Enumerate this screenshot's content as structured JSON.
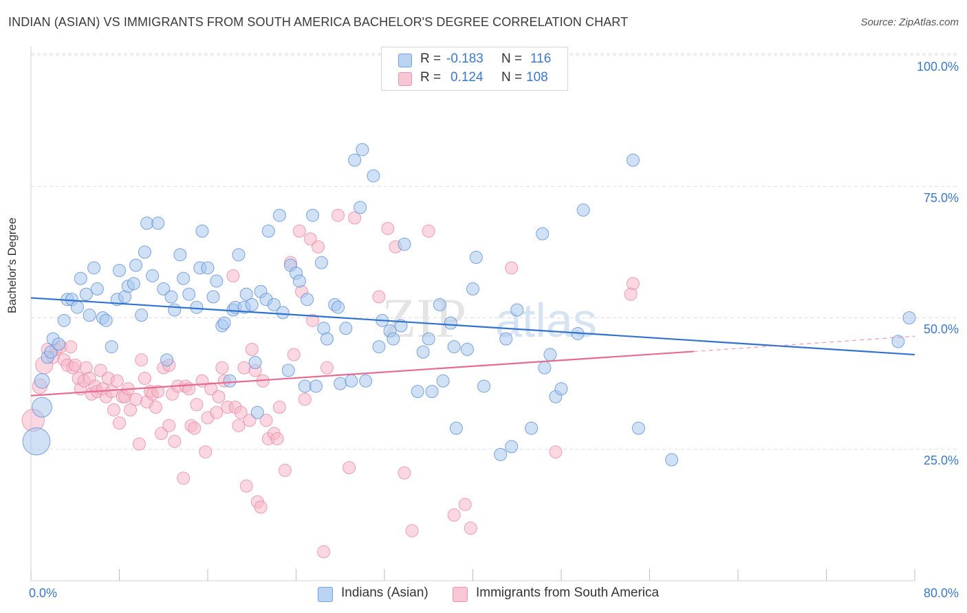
{
  "header": {
    "title": "INDIAN (ASIAN) VS IMMIGRANTS FROM SOUTH AMERICA BACHELOR'S DEGREE CORRELATION CHART",
    "source": "Source: ZipAtlas.com"
  },
  "watermark": "ZIPatlas",
  "legend_top": {
    "rows": [
      {
        "r_label": "R =",
        "r_value": "-0.183",
        "n_label": "N =",
        "n_value": "116"
      },
      {
        "r_label": "R =",
        "r_value": "0.124",
        "n_label": "N =",
        "n_value": "108"
      }
    ]
  },
  "colors": {
    "blue_fill": "#a9c8ef",
    "blue_stroke": "#5b8fd6",
    "blue_line": "#2f72cf",
    "pink_fill": "#f6b6c9",
    "pink_stroke": "#e98aa6",
    "pink_line": "#e56b93",
    "axis_text": "#3a78c9",
    "grid": "#dddddd"
  },
  "chart_data": {
    "type": "scatter",
    "title": "INDIAN (ASIAN) VS IMMIGRANTS FROM SOUTH AMERICA BACHELOR'S DEGREE CORRELATION CHART",
    "xlabel": "",
    "ylabel": "Bachelor's Degree",
    "xlim": [
      0,
      80
    ],
    "ylim": [
      0,
      102
    ],
    "x_tick_labels": [
      "0.0%",
      "80.0%"
    ],
    "y_tick_labels": [
      "25.0%",
      "50.0%",
      "75.0%",
      "100.0%"
    ],
    "y_ticks": [
      25,
      50,
      75,
      100
    ],
    "grid": true,
    "series": [
      {
        "name": "Indians (Asian)",
        "r": -0.183,
        "n": 116,
        "trend": {
          "x0": 0,
          "y0": 53.8,
          "x1": 80,
          "y1": 43.0
        },
        "points": [
          [
            0.5,
            26.5,
            2.2
          ],
          [
            1.0,
            33,
            1.6
          ],
          [
            1.0,
            38,
            1.2
          ],
          [
            1.5,
            42.5,
            1.0
          ],
          [
            1.8,
            43.5,
            1.0
          ],
          [
            2.0,
            46,
            1.0
          ],
          [
            2.5,
            45,
            1.0
          ],
          [
            3.0,
            49.5,
            1.0
          ],
          [
            3.3,
            53.5,
            1.0
          ],
          [
            3.7,
            53.5,
            1.0
          ],
          [
            4.2,
            52,
            1.0
          ],
          [
            4.5,
            57.5,
            1.0
          ],
          [
            5.0,
            54.5,
            1.0
          ],
          [
            5.3,
            50.5,
            1.0
          ],
          [
            5.7,
            59.5,
            1.0
          ],
          [
            6.0,
            55.5,
            1.0
          ],
          [
            6.5,
            50,
            1.0
          ],
          [
            6.8,
            49.5,
            1.0
          ],
          [
            7.3,
            44.5,
            1.0
          ],
          [
            7.8,
            53.5,
            1.0
          ],
          [
            8.0,
            59,
            1.0
          ],
          [
            8.5,
            54,
            1.0
          ],
          [
            8.8,
            56,
            1.0
          ],
          [
            9.3,
            56.5,
            1.0
          ],
          [
            9.5,
            60,
            1.0
          ],
          [
            10.0,
            50.5,
            1.0
          ],
          [
            10.3,
            62.5,
            1.0
          ],
          [
            10.5,
            68,
            1.0
          ],
          [
            11.0,
            58,
            1.0
          ],
          [
            11.5,
            68,
            1.0
          ],
          [
            12.0,
            55.5,
            1.0
          ],
          [
            12.3,
            42,
            1.0
          ],
          [
            12.7,
            54,
            1.0
          ],
          [
            13.0,
            51.5,
            1.0
          ],
          [
            13.5,
            62,
            1.0
          ],
          [
            13.8,
            57.5,
            1.0
          ],
          [
            14.3,
            54.5,
            1.0
          ],
          [
            15.0,
            52,
            1.0
          ],
          [
            15.3,
            59.5,
            1.0
          ],
          [
            15.5,
            66.5,
            1.0
          ],
          [
            16.0,
            59.5,
            1.0
          ],
          [
            16.5,
            54,
            1.0
          ],
          [
            16.8,
            57,
            1.0
          ],
          [
            17.3,
            48.5,
            1.0
          ],
          [
            17.5,
            49,
            1.0
          ],
          [
            18.0,
            38,
            1.0
          ],
          [
            18.3,
            51.5,
            1.0
          ],
          [
            18.5,
            52,
            1.0
          ],
          [
            18.8,
            62,
            1.0
          ],
          [
            19.3,
            52,
            1.0
          ],
          [
            19.5,
            54.5,
            1.0
          ],
          [
            20.0,
            52.5,
            1.0
          ],
          [
            20.3,
            41.5,
            1.0
          ],
          [
            20.5,
            32,
            1.0
          ],
          [
            20.8,
            55,
            1.0
          ],
          [
            21.3,
            53.5,
            1.0
          ],
          [
            21.5,
            66.5,
            1.0
          ],
          [
            22.0,
            52.5,
            1.0
          ],
          [
            22.5,
            69.5,
            1.0
          ],
          [
            22.8,
            51,
            1.0
          ],
          [
            23.3,
            40,
            1.0
          ],
          [
            23.5,
            60,
            1.0
          ],
          [
            24.0,
            58.5,
            1.0
          ],
          [
            24.3,
            57,
            1.0
          ],
          [
            24.8,
            37,
            1.0
          ],
          [
            25.0,
            53.5,
            1.0
          ],
          [
            25.5,
            69.5,
            1.0
          ],
          [
            25.8,
            37,
            1.0
          ],
          [
            26.3,
            60.5,
            1.0
          ],
          [
            26.5,
            48,
            1.0
          ],
          [
            26.8,
            46,
            1.0
          ],
          [
            27.5,
            52.5,
            1.0
          ],
          [
            27.8,
            52,
            1.0
          ],
          [
            28.0,
            37.5,
            1.0
          ],
          [
            28.5,
            48,
            1.0
          ],
          [
            29.0,
            38,
            1.0
          ],
          [
            29.3,
            80,
            1.0
          ],
          [
            29.8,
            71,
            1.0
          ],
          [
            30.0,
            82,
            1.0
          ],
          [
            30.3,
            38,
            1.0
          ],
          [
            31.0,
            77,
            1.0
          ],
          [
            31.5,
            44.5,
            1.0
          ],
          [
            31.8,
            49.5,
            1.0
          ],
          [
            32.5,
            47.5,
            1.0
          ],
          [
            32.8,
            46,
            1.0
          ],
          [
            33.5,
            48.5,
            1.0
          ],
          [
            33.8,
            64,
            1.0
          ],
          [
            35.0,
            36,
            1.0
          ],
          [
            35.5,
            43.5,
            1.0
          ],
          [
            36.0,
            46,
            1.0
          ],
          [
            36.3,
            36,
            1.0
          ],
          [
            37.0,
            52.5,
            1.0
          ],
          [
            37.3,
            38,
            1.0
          ],
          [
            38.0,
            49,
            1.0
          ],
          [
            38.3,
            44.5,
            1.0
          ],
          [
            38.5,
            29,
            1.0
          ],
          [
            39.5,
            44,
            1.0
          ],
          [
            40.0,
            55.5,
            1.0
          ],
          [
            40.3,
            61.5,
            1.0
          ],
          [
            41.0,
            37,
            1.0
          ],
          [
            42.5,
            24,
            1.0
          ],
          [
            43.0,
            46,
            1.0
          ],
          [
            43.5,
            25.5,
            1.0
          ],
          [
            44.0,
            51.5,
            1.0
          ],
          [
            45.3,
            29,
            1.0
          ],
          [
            46.3,
            66,
            1.0
          ],
          [
            46.5,
            40.5,
            1.0
          ],
          [
            47.0,
            43,
            1.0
          ],
          [
            47.5,
            35,
            1.0
          ],
          [
            48.0,
            36.5,
            1.0
          ],
          [
            49.5,
            47,
            1.0
          ],
          [
            50.0,
            70.5,
            1.0
          ],
          [
            54.5,
            80,
            1.0
          ],
          [
            55.0,
            29,
            1.0
          ],
          [
            58.0,
            23,
            1.0
          ],
          [
            78.5,
            45.5,
            1.0
          ],
          [
            79.5,
            50,
            1.0
          ]
        ]
      },
      {
        "name": "Immigrants from South America",
        "r": 0.124,
        "n": 108,
        "trend": {
          "x0": 0,
          "y0": 35.2,
          "x1": 60,
          "y1": 43.6
        },
        "trend_dashed": {
          "x0": 60,
          "y0": 43.6,
          "x1": 80,
          "y1": 46.5
        },
        "points": [
          [
            0.2,
            30.5,
            1.8
          ],
          [
            0.8,
            37,
            1.2
          ],
          [
            1.2,
            41,
            1.4
          ],
          [
            1.5,
            44,
            1.0
          ],
          [
            2.0,
            42.5,
            1.0
          ],
          [
            2.3,
            44,
            1.0
          ],
          [
            2.7,
            44.5,
            1.0
          ],
          [
            3.0,
            42,
            1.0
          ],
          [
            3.3,
            41,
            1.0
          ],
          [
            3.6,
            44.5,
            1.0
          ],
          [
            3.8,
            40.5,
            1.0
          ],
          [
            4.0,
            41,
            1.0
          ],
          [
            4.3,
            38.5,
            1.0
          ],
          [
            4.5,
            36.5,
            1.0
          ],
          [
            4.8,
            38,
            1.0
          ],
          [
            5.0,
            40.5,
            1.0
          ],
          [
            5.3,
            38.5,
            1.0
          ],
          [
            5.5,
            35.5,
            1.0
          ],
          [
            5.8,
            37,
            1.0
          ],
          [
            6.0,
            36,
            1.0
          ],
          [
            6.3,
            40,
            1.0
          ],
          [
            6.5,
            36.5,
            1.0
          ],
          [
            6.8,
            35,
            1.0
          ],
          [
            7.0,
            38.5,
            1.0
          ],
          [
            7.3,
            36,
            1.0
          ],
          [
            7.5,
            32.5,
            1.0
          ],
          [
            7.8,
            38,
            1.0
          ],
          [
            8.0,
            30,
            1.0
          ],
          [
            8.3,
            35,
            1.0
          ],
          [
            8.5,
            35,
            1.0
          ],
          [
            8.8,
            36.5,
            1.0
          ],
          [
            9.0,
            32.5,
            1.0
          ],
          [
            9.5,
            34.5,
            1.0
          ],
          [
            9.8,
            26,
            1.0
          ],
          [
            10.0,
            42,
            1.0
          ],
          [
            10.3,
            38.5,
            1.0
          ],
          [
            10.5,
            34,
            1.0
          ],
          [
            10.8,
            36,
            1.0
          ],
          [
            11.0,
            35.5,
            1.0
          ],
          [
            11.3,
            33,
            1.0
          ],
          [
            11.5,
            36,
            1.0
          ],
          [
            11.8,
            28,
            1.0
          ],
          [
            12.0,
            40.5,
            1.0
          ],
          [
            12.5,
            29.5,
            1.0
          ],
          [
            12.8,
            35.5,
            1.0
          ],
          [
            13.0,
            26.5,
            1.0
          ],
          [
            13.3,
            37,
            1.0
          ],
          [
            13.8,
            19.5,
            1.0
          ],
          [
            14.0,
            37,
            1.0
          ],
          [
            14.3,
            36.5,
            1.0
          ],
          [
            14.5,
            29.5,
            1.0
          ],
          [
            14.8,
            29,
            1.0
          ],
          [
            15.0,
            33.5,
            1.0
          ],
          [
            15.5,
            38,
            1.0
          ],
          [
            15.8,
            24.5,
            1.0
          ],
          [
            16.0,
            31,
            1.0
          ],
          [
            16.3,
            36.5,
            1.0
          ],
          [
            16.8,
            32,
            1.0
          ],
          [
            17.0,
            35,
            1.0
          ],
          [
            17.3,
            40.5,
            1.0
          ],
          [
            17.5,
            38,
            1.0
          ],
          [
            17.8,
            33,
            1.0
          ],
          [
            18.3,
            58,
            1.0
          ],
          [
            18.5,
            33,
            1.0
          ],
          [
            18.8,
            29.5,
            1.0
          ],
          [
            19.0,
            32,
            1.0
          ],
          [
            19.3,
            40.5,
            1.0
          ],
          [
            19.5,
            18,
            1.0
          ],
          [
            19.8,
            30.5,
            1.0
          ],
          [
            20.0,
            44,
            1.0
          ],
          [
            20.3,
            40,
            1.0
          ],
          [
            20.5,
            15,
            1.0
          ],
          [
            20.8,
            14,
            1.0
          ],
          [
            21.0,
            38,
            1.0
          ],
          [
            21.3,
            30.5,
            1.0
          ],
          [
            21.5,
            27,
            1.0
          ],
          [
            22.0,
            28,
            1.0
          ],
          [
            22.3,
            27,
            1.0
          ],
          [
            22.5,
            33,
            1.0
          ],
          [
            23.0,
            21,
            1.0
          ],
          [
            23.5,
            60.5,
            1.0
          ],
          [
            23.8,
            43,
            1.0
          ],
          [
            24.3,
            66.5,
            1.0
          ],
          [
            24.8,
            34.5,
            1.0
          ],
          [
            25.3,
            65,
            1.0
          ],
          [
            25.5,
            49.5,
            1.0
          ],
          [
            26.0,
            63.5,
            1.0
          ],
          [
            26.5,
            5.5,
            1.0
          ],
          [
            26.8,
            40.5,
            1.0
          ],
          [
            27.8,
            69.5,
            1.0
          ],
          [
            28.8,
            21.5,
            1.0
          ],
          [
            29.3,
            69,
            1.0
          ],
          [
            31.5,
            54,
            1.0
          ],
          [
            32.3,
            67,
            1.0
          ],
          [
            33.0,
            63.5,
            1.0
          ],
          [
            33.8,
            20.5,
            1.0
          ],
          [
            34.5,
            9.5,
            1.0
          ],
          [
            36.0,
            66.5,
            1.0
          ],
          [
            38.3,
            12.5,
            1.0
          ],
          [
            39.3,
            14.5,
            1.0
          ],
          [
            39.8,
            10,
            1.0
          ],
          [
            43.5,
            59.5,
            1.0
          ],
          [
            47.5,
            24.5,
            1.0
          ],
          [
            54.5,
            56.5,
            1.0
          ],
          [
            54.3,
            54.5,
            1.0
          ],
          [
            24.5,
            55,
            1.0
          ],
          [
            12.5,
            41,
            1.0
          ]
        ]
      }
    ]
  },
  "legend_bottom": {
    "items": [
      "Indians (Asian)",
      "Immigrants from South America"
    ]
  }
}
